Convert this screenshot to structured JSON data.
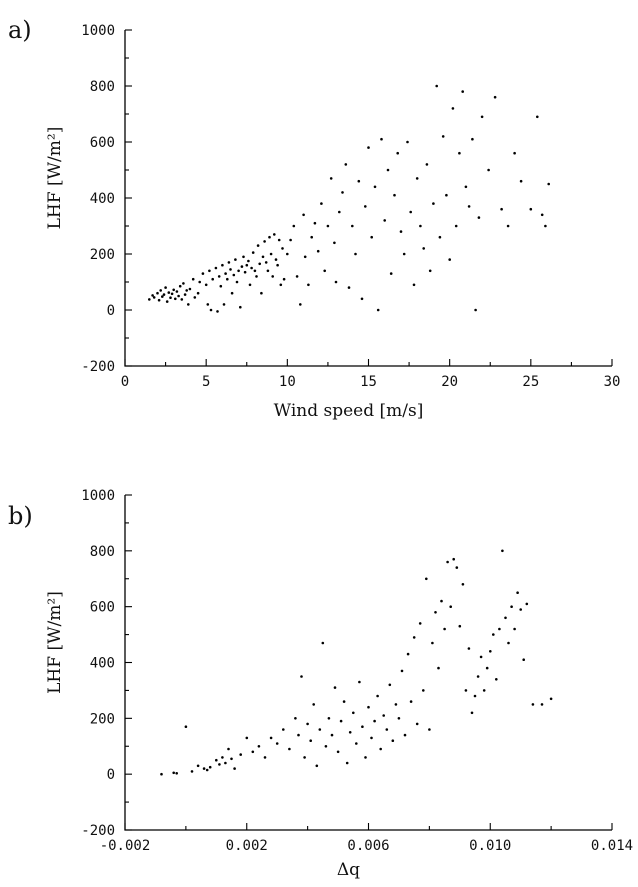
{
  "chart_data": [
    {
      "type": "scatter",
      "panel_label": "a)",
      "xlabel": "Wind speed [m/s]",
      "ylabel": "LHF [W/m²]",
      "xlim": [
        0,
        30
      ],
      "ylim": [
        -200,
        1000
      ],
      "xticks": [
        "0",
        "5",
        "10",
        "15",
        "20",
        "25",
        "30"
      ],
      "yticks": [
        "-200",
        "0",
        "200",
        "400",
        "600",
        "800",
        "1000"
      ],
      "grid": false,
      "points": [
        [
          1.5,
          38
        ],
        [
          1.7,
          52
        ],
        [
          1.8,
          45
        ],
        [
          2.0,
          60
        ],
        [
          2.1,
          35
        ],
        [
          2.2,
          70
        ],
        [
          2.3,
          48
        ],
        [
          2.4,
          55
        ],
        [
          2.5,
          80
        ],
        [
          2.6,
          30
        ],
        [
          2.7,
          62
        ],
        [
          2.8,
          44
        ],
        [
          2.9,
          58
        ],
        [
          3.0,
          72
        ],
        [
          3.1,
          40
        ],
        [
          3.2,
          66
        ],
        [
          3.3,
          50
        ],
        [
          3.4,
          85
        ],
        [
          3.5,
          38
        ],
        [
          3.6,
          95
        ],
        [
          3.7,
          55
        ],
        [
          3.8,
          70
        ],
        [
          3.9,
          20
        ],
        [
          4.0,
          75
        ],
        [
          4.2,
          110
        ],
        [
          4.3,
          45
        ],
        [
          4.5,
          60
        ],
        [
          4.6,
          100
        ],
        [
          4.8,
          130
        ],
        [
          5.0,
          90
        ],
        [
          5.1,
          20
        ],
        [
          5.2,
          140
        ],
        [
          5.3,
          0
        ],
        [
          5.4,
          110
        ],
        [
          5.6,
          150
        ],
        [
          5.7,
          -5
        ],
        [
          5.8,
          120
        ],
        [
          5.9,
          85
        ],
        [
          6.0,
          160
        ],
        [
          6.1,
          20
        ],
        [
          6.2,
          130
        ],
        [
          6.3,
          110
        ],
        [
          6.4,
          170
        ],
        [
          6.5,
          145
        ],
        [
          6.6,
          60
        ],
        [
          6.7,
          125
        ],
        [
          6.8,
          180
        ],
        [
          6.9,
          100
        ],
        [
          7.0,
          140
        ],
        [
          7.1,
          10
        ],
        [
          7.2,
          155
        ],
        [
          7.3,
          190
        ],
        [
          7.4,
          135
        ],
        [
          7.5,
          160
        ],
        [
          7.6,
          175
        ],
        [
          7.7,
          90
        ],
        [
          7.8,
          150
        ],
        [
          7.9,
          205
        ],
        [
          8.0,
          140
        ],
        [
          8.1,
          120
        ],
        [
          8.2,
          230
        ],
        [
          8.3,
          165
        ],
        [
          8.4,
          60
        ],
        [
          8.5,
          190
        ],
        [
          8.6,
          245
        ],
        [
          8.7,
          170
        ],
        [
          8.8,
          140
        ],
        [
          8.9,
          260
        ],
        [
          9.0,
          200
        ],
        [
          9.1,
          120
        ],
        [
          9.2,
          270
        ],
        [
          9.3,
          180
        ],
        [
          9.4,
          160
        ],
        [
          9.5,
          250
        ],
        [
          9.6,
          90
        ],
        [
          9.7,
          220
        ],
        [
          9.8,
          110
        ],
        [
          10.0,
          200
        ],
        [
          10.2,
          250
        ],
        [
          10.4,
          300
        ],
        [
          10.6,
          120
        ],
        [
          10.8,
          20
        ],
        [
          11.0,
          340
        ],
        [
          11.1,
          190
        ],
        [
          11.3,
          90
        ],
        [
          11.5,
          260
        ],
        [
          11.7,
          310
        ],
        [
          11.9,
          210
        ],
        [
          12.1,
          380
        ],
        [
          12.3,
          140
        ],
        [
          12.5,
          300
        ],
        [
          12.7,
          470
        ],
        [
          12.9,
          240
        ],
        [
          13.0,
          100
        ],
        [
          13.2,
          350
        ],
        [
          13.4,
          420
        ],
        [
          13.6,
          520
        ],
        [
          13.8,
          80
        ],
        [
          14.0,
          300
        ],
        [
          14.2,
          200
        ],
        [
          14.4,
          460
        ],
        [
          14.6,
          40
        ],
        [
          14.8,
          370
        ],
        [
          15.0,
          580
        ],
        [
          15.2,
          260
        ],
        [
          15.4,
          440
        ],
        [
          15.6,
          0
        ],
        [
          15.8,
          610
        ],
        [
          16.0,
          320
        ],
        [
          16.2,
          500
        ],
        [
          16.4,
          130
        ],
        [
          16.6,
          410
        ],
        [
          16.8,
          560
        ],
        [
          17.0,
          280
        ],
        [
          17.2,
          200
        ],
        [
          17.4,
          600
        ],
        [
          17.6,
          350
        ],
        [
          17.8,
          90
        ],
        [
          18.0,
          470
        ],
        [
          18.2,
          300
        ],
        [
          18.4,
          220
        ],
        [
          18.6,
          520
        ],
        [
          18.8,
          140
        ],
        [
          19.0,
          380
        ],
        [
          19.2,
          800
        ],
        [
          19.4,
          260
        ],
        [
          19.6,
          620
        ],
        [
          19.8,
          410
        ],
        [
          20.0,
          180
        ],
        [
          20.2,
          720
        ],
        [
          20.4,
          300
        ],
        [
          20.6,
          560
        ],
        [
          20.8,
          780
        ],
        [
          21.0,
          440
        ],
        [
          21.2,
          370
        ],
        [
          21.4,
          610
        ],
        [
          21.6,
          0
        ],
        [
          21.8,
          330
        ],
        [
          22.0,
          690
        ],
        [
          22.4,
          500
        ],
        [
          22.8,
          760
        ],
        [
          23.2,
          360
        ],
        [
          23.6,
          300
        ],
        [
          24.0,
          560
        ],
        [
          24.4,
          460
        ],
        [
          25.0,
          360
        ],
        [
          25.4,
          690
        ],
        [
          25.7,
          340
        ],
        [
          25.9,
          300
        ],
        [
          26.1,
          450
        ]
      ]
    },
    {
      "type": "scatter",
      "panel_label": "b)",
      "xlabel": "Δq",
      "ylabel": "LHF [W/m²]",
      "xlim": [
        -0.002,
        0.014
      ],
      "ylim": [
        -200,
        1000
      ],
      "xticks": [
        "-0.002",
        "0.002",
        "0.006",
        "0.010",
        "0.014"
      ],
      "yticks": [
        "-200",
        "0",
        "200",
        "400",
        "600",
        "800",
        "1000"
      ],
      "grid": false,
      "points": [
        [
          -0.0008,
          0
        ],
        [
          -0.0004,
          5
        ],
        [
          -0.0003,
          3
        ],
        [
          0.0,
          170
        ],
        [
          0.0002,
          10
        ],
        [
          0.0004,
          30
        ],
        [
          0.0006,
          20
        ],
        [
          0.0007,
          15
        ],
        [
          0.0008,
          25
        ],
        [
          0.001,
          50
        ],
        [
          0.0011,
          35
        ],
        [
          0.0012,
          60
        ],
        [
          0.0013,
          40
        ],
        [
          0.0014,
          90
        ],
        [
          0.0015,
          55
        ],
        [
          0.0016,
          20
        ],
        [
          0.0018,
          70
        ],
        [
          0.002,
          130
        ],
        [
          0.0022,
          80
        ],
        [
          0.0024,
          100
        ],
        [
          0.0026,
          60
        ],
        [
          0.0028,
          130
        ],
        [
          0.003,
          110
        ],
        [
          0.0032,
          160
        ],
        [
          0.0034,
          90
        ],
        [
          0.0036,
          200
        ],
        [
          0.0037,
          140
        ],
        [
          0.0038,
          350
        ],
        [
          0.0039,
          60
        ],
        [
          0.004,
          180
        ],
        [
          0.0041,
          120
        ],
        [
          0.0042,
          250
        ],
        [
          0.0043,
          30
        ],
        [
          0.0044,
          160
        ],
        [
          0.0045,
          470
        ],
        [
          0.0046,
          100
        ],
        [
          0.0047,
          200
        ],
        [
          0.0048,
          140
        ],
        [
          0.0049,
          310
        ],
        [
          0.005,
          80
        ],
        [
          0.0051,
          190
        ],
        [
          0.0052,
          260
        ],
        [
          0.0053,
          40
        ],
        [
          0.0054,
          150
        ],
        [
          0.0055,
          220
        ],
        [
          0.0056,
          110
        ],
        [
          0.0057,
          330
        ],
        [
          0.0058,
          170
        ],
        [
          0.0059,
          60
        ],
        [
          0.006,
          240
        ],
        [
          0.0061,
          130
        ],
        [
          0.0062,
          190
        ],
        [
          0.0063,
          280
        ],
        [
          0.0064,
          90
        ],
        [
          0.0065,
          210
        ],
        [
          0.0066,
          160
        ],
        [
          0.0067,
          320
        ],
        [
          0.0068,
          120
        ],
        [
          0.0069,
          250
        ],
        [
          0.007,
          200
        ],
        [
          0.0071,
          370
        ],
        [
          0.0072,
          140
        ],
        [
          0.0073,
          430
        ],
        [
          0.0074,
          260
        ],
        [
          0.0075,
          490
        ],
        [
          0.0076,
          180
        ],
        [
          0.0077,
          540
        ],
        [
          0.0078,
          300
        ],
        [
          0.0079,
          700
        ],
        [
          0.008,
          160
        ],
        [
          0.0081,
          470
        ],
        [
          0.0082,
          580
        ],
        [
          0.0083,
          380
        ],
        [
          0.0084,
          620
        ],
        [
          0.0085,
          520
        ],
        [
          0.0086,
          760
        ],
        [
          0.0087,
          600
        ],
        [
          0.0088,
          770
        ],
        [
          0.0089,
          740
        ],
        [
          0.009,
          530
        ],
        [
          0.0091,
          680
        ],
        [
          0.0092,
          300
        ],
        [
          0.0093,
          450
        ],
        [
          0.0094,
          220
        ],
        [
          0.0095,
          280
        ],
        [
          0.0096,
          350
        ],
        [
          0.0097,
          420
        ],
        [
          0.0098,
          300
        ],
        [
          0.0099,
          380
        ],
        [
          0.01,
          440
        ],
        [
          0.0101,
          500
        ],
        [
          0.0102,
          340
        ],
        [
          0.0103,
          520
        ],
        [
          0.0104,
          800
        ],
        [
          0.0105,
          560
        ],
        [
          0.0106,
          470
        ],
        [
          0.0107,
          600
        ],
        [
          0.0108,
          520
        ],
        [
          0.0109,
          650
        ],
        [
          0.011,
          590
        ],
        [
          0.0111,
          410
        ],
        [
          0.0112,
          610
        ],
        [
          0.0114,
          250
        ],
        [
          0.0117,
          250
        ],
        [
          0.012,
          270
        ]
      ]
    }
  ]
}
